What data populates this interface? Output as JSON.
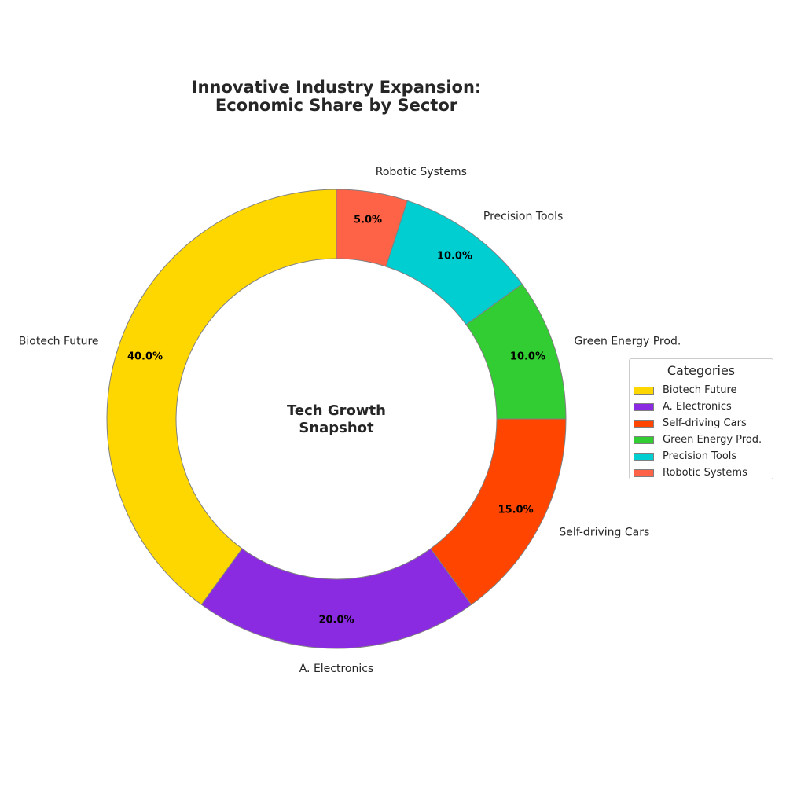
{
  "chart_data": {
    "type": "pie",
    "donut": true,
    "title_lines": [
      "Innovative Industry Expansion:",
      "Economic Share by Sector"
    ],
    "center_text_lines": [
      "Tech Growth",
      "Snapshot"
    ],
    "start_angle_deg": 90,
    "direction": "counterclockwise",
    "edge_color": "#808080",
    "slices": [
      {
        "label": "Biotech Future",
        "value": 40,
        "pct_label": "40.0%",
        "color": "#FFD700"
      },
      {
        "label": "A. Electronics",
        "value": 20,
        "pct_label": "20.0%",
        "color": "#8A2BE2"
      },
      {
        "label": "Self-driving Cars",
        "value": 15,
        "pct_label": "15.0%",
        "color": "#FF4500"
      },
      {
        "label": "Green Energy Prod.",
        "value": 10,
        "pct_label": "10.0%",
        "color": "#32CD32"
      },
      {
        "label": "Precision Tools",
        "value": 10,
        "pct_label": "10.0%",
        "color": "#00CED1"
      },
      {
        "label": "Robotic Systems",
        "value": 5,
        "pct_label": "5.0%",
        "color": "#FF6347"
      }
    ],
    "legend": {
      "title": "Categories",
      "placement": "right"
    }
  }
}
